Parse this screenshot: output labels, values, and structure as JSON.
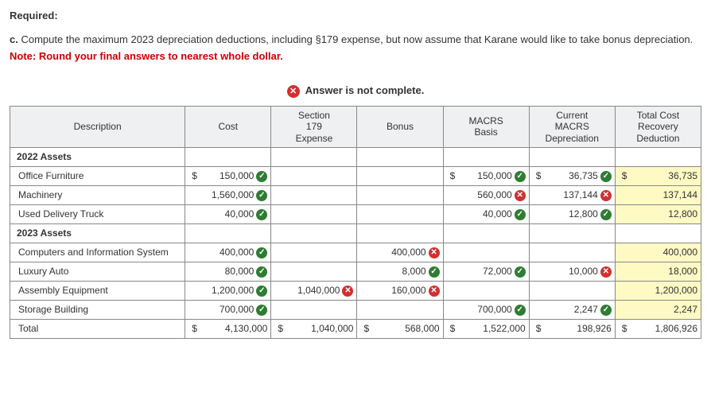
{
  "header": {
    "required": "Required:",
    "part_label": "c.",
    "instructions": "Compute the maximum 2023 depreciation deductions, including §179 expense, but now assume that Karane would like to take bonus depreciation.",
    "note": "Note: Round your final answers to nearest whole dollar.",
    "banner": "Answer is not complete."
  },
  "columns": {
    "description": "Description",
    "cost": "Cost",
    "s179": "Section\n179\nExpense",
    "bonus": "Bonus",
    "basis": "MACRS\nBasis",
    "macrs": "Current\nMACRS\nDepreciation",
    "total": "Total Cost\nRecovery\nDeduction"
  },
  "sections": {
    "y2022": "2022 Assets",
    "y2023": "2023 Assets"
  },
  "rows": [
    {
      "desc": "Office Furniture",
      "cost": "150,000",
      "cost_m": "ok",
      "cost_d": true,
      "basis": "150,000",
      "basis_m": "ok",
      "basis_d": true,
      "macrs": "36,735",
      "macrs_m": "ok",
      "macrs_d": true,
      "total": "36,735",
      "total_d": true,
      "yellow": true
    },
    {
      "desc": "Machinery",
      "cost": "1,560,000",
      "cost_m": "ok",
      "basis": "560,000",
      "basis_m": "bad",
      "macrs": "137,144",
      "macrs_m": "bad",
      "total": "137,144",
      "yellow": true
    },
    {
      "desc": "Used Delivery Truck",
      "cost": "40,000",
      "cost_m": "ok",
      "basis": "40,000",
      "basis_m": "ok",
      "macrs": "12,800",
      "macrs_m": "ok",
      "total": "12,800",
      "yellow": true
    },
    {
      "desc": "Computers and Information System",
      "cost": "400,000",
      "cost_m": "ok",
      "bonus": "400,000",
      "bonus_m": "bad",
      "total": "400,000",
      "yellow": true
    },
    {
      "desc": "Luxury Auto",
      "cost": "80,000",
      "cost_m": "ok",
      "bonus": "8,000",
      "bonus_m": "ok",
      "basis": "72,000",
      "basis_m": "ok",
      "macrs": "10,000",
      "macrs_m": "bad",
      "total": "18,000",
      "yellow": true
    },
    {
      "desc": "Assembly Equipment",
      "cost": "1,200,000",
      "cost_m": "ok",
      "s179": "1,040,000",
      "s179_m": "bad",
      "bonus": "160,000",
      "bonus_m": "bad",
      "total": "1,200,000",
      "yellow": true
    },
    {
      "desc": "Storage Building",
      "cost": "700,000",
      "cost_m": "ok",
      "basis": "700,000",
      "basis_m": "ok",
      "macrs": "2,247",
      "macrs_m": "ok",
      "total": "2,247",
      "yellow": true
    }
  ],
  "totals": {
    "desc": "Total",
    "cost": "4,130,000",
    "cost_d": true,
    "s179": "1,040,000",
    "s179_d": true,
    "bonus": "568,000",
    "bonus_d": true,
    "basis": "1,522,000",
    "basis_d": true,
    "macrs": "198,926",
    "macrs_d": true,
    "total": "1,806,926",
    "total_d": true
  }
}
